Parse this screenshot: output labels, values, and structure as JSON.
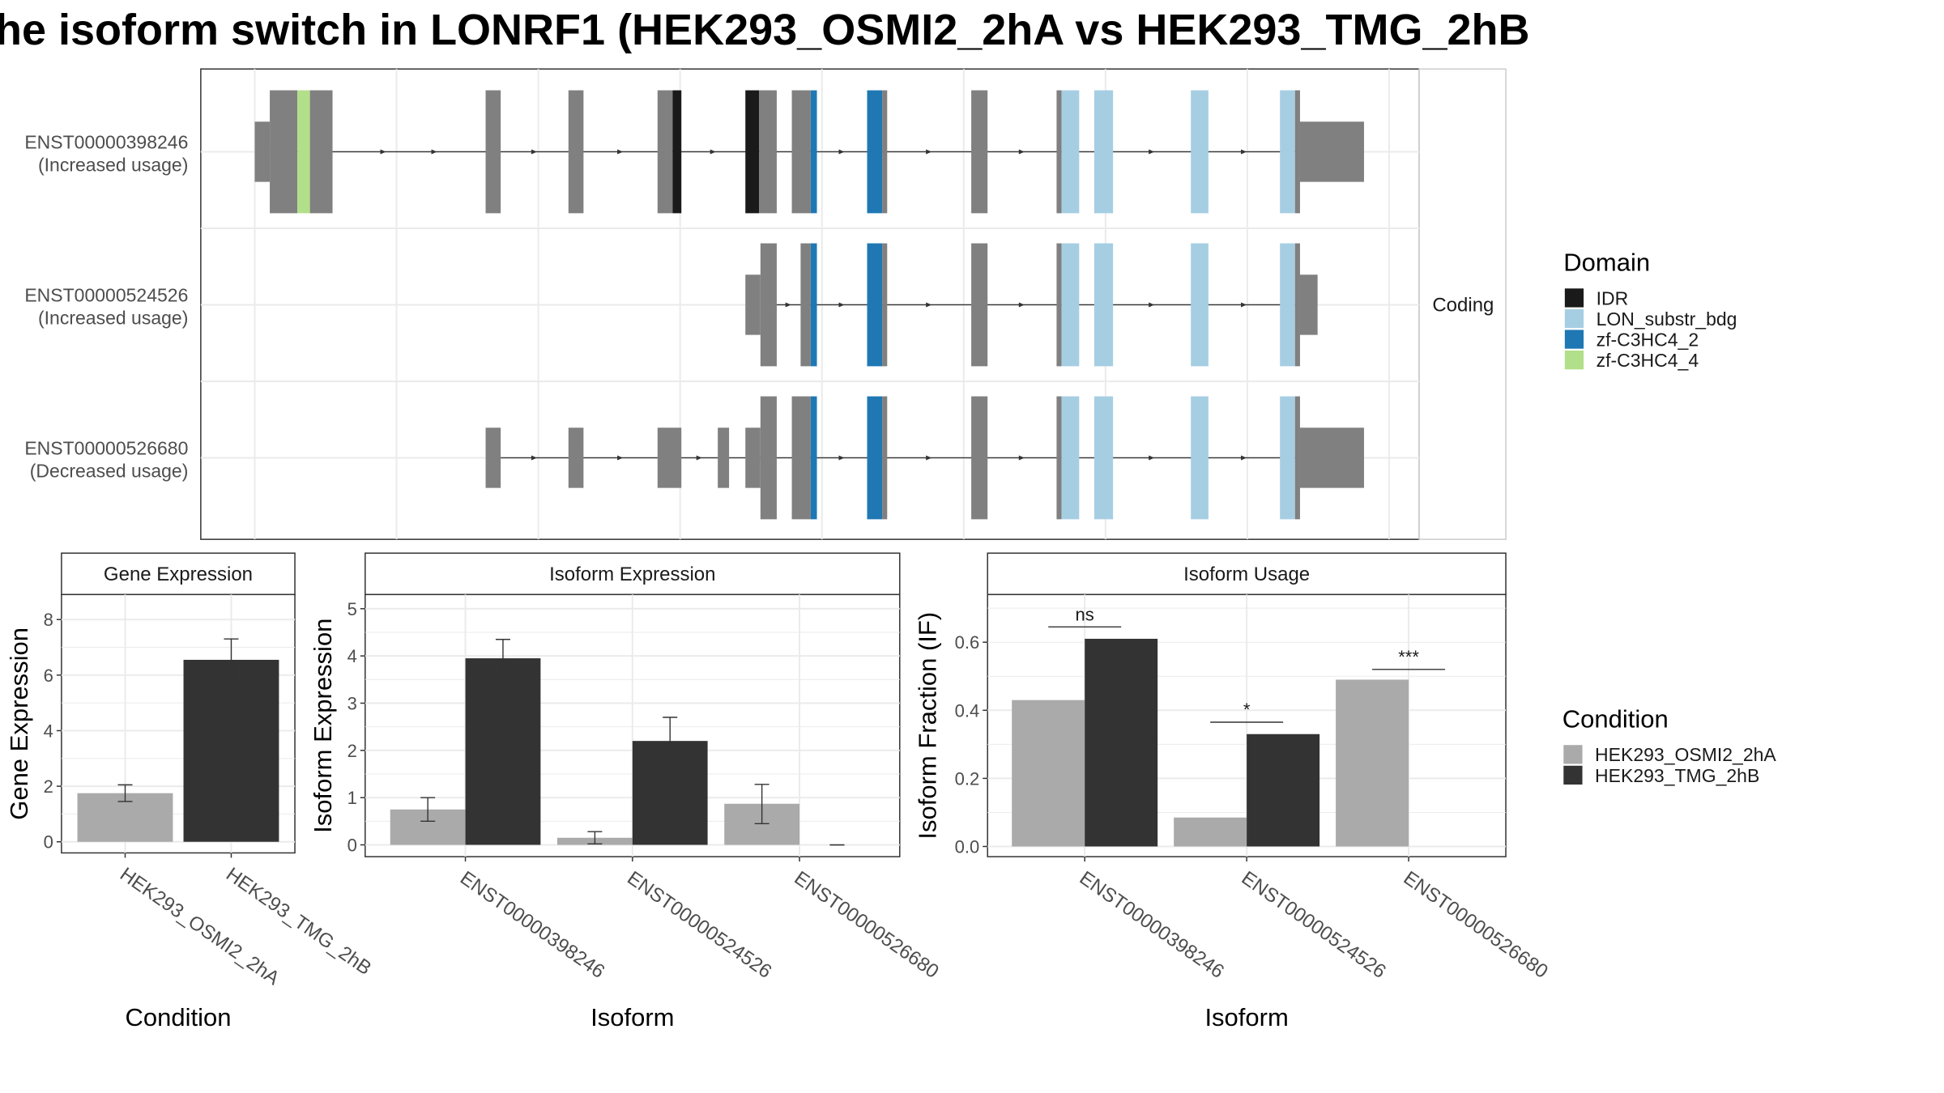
{
  "title": "he isoform switch in LONRF1 (HEK293_OSMI2_2hA vs HEK293_TMG_2hB",
  "colors": {
    "IDR": "#1a1a1a",
    "LON_substr_bdg": "#a6cee3",
    "zf-C3HC4_2": "#1f78b4",
    "zf-C3HC4_4": "#b2df8a",
    "exon": "#808080",
    "cond_A": "#aaaaaa",
    "cond_B": "#333333"
  },
  "chart_data": [
    {
      "type": "gene-structure",
      "panel_strip": "Coding",
      "legend_title": "Domain",
      "legend": [
        "IDR",
        "LON_substr_bdg",
        "zf-C3HC4_2",
        "zf-C3HC4_4"
      ],
      "transcripts": [
        {
          "id": "ENST00000398246",
          "label": "(Increased usage)",
          "intron": [
            215,
            1035
          ],
          "exons": [
            {
              "start": 203,
              "end": 265,
              "kind": "coding",
              "segments": [
                [
                  203,
                  215,
                  "utr"
                ],
                [
                  215,
                  237,
                  "exon"
                ],
                [
                  237,
                  247,
                  "zf-C3HC4_4"
                ],
                [
                  247,
                  265,
                  "exon"
                ]
              ]
            },
            {
              "start": 387,
              "end": 399,
              "segments": [
                [
                  387,
                  399,
                  "exon"
                ]
              ]
            },
            {
              "start": 453,
              "end": 465,
              "segments": [
                [
                  453,
                  465,
                  "exon"
                ]
              ]
            },
            {
              "start": 524,
              "end": 543,
              "segments": [
                [
                  524,
                  536,
                  "exon"
                ],
                [
                  536,
                  543,
                  "IDR"
                ]
              ]
            },
            {
              "start": 594,
              "end": 619,
              "segments": [
                [
                  594,
                  605,
                  "IDR"
                ],
                [
                  605,
                  619,
                  "exon"
                ]
              ]
            },
            {
              "start": 631,
              "end": 651,
              "segments": [
                [
                  631,
                  646,
                  "exon"
                ],
                [
                  646,
                  651,
                  "zf-C3HC4_2"
                ]
              ]
            },
            {
              "start": 691,
              "end": 707,
              "segments": [
                [
                  691,
                  703,
                  "zf-C3HC4_2"
                ],
                [
                  703,
                  707,
                  "exon"
                ]
              ]
            },
            {
              "start": 774,
              "end": 787,
              "segments": [
                [
                  774,
                  787,
                  "exon"
                ]
              ]
            },
            {
              "start": 842,
              "end": 860,
              "segments": [
                [
                  842,
                  846,
                  "exon"
                ],
                [
                  846,
                  860,
                  "LON_substr_bdg"
                ]
              ]
            },
            {
              "start": 872,
              "end": 887,
              "segments": [
                [
                  872,
                  887,
                  "LON_substr_bdg"
                ]
              ]
            },
            {
              "start": 949,
              "end": 963,
              "segments": [
                [
                  949,
                  963,
                  "LON_substr_bdg"
                ]
              ]
            },
            {
              "start": 1020,
              "end": 1087,
              "segments": [
                [
                  1020,
                  1032,
                  "LON_substr_bdg"
                ],
                [
                  1032,
                  1036,
                  "exon"
                ],
                [
                  1036,
                  1087,
                  "utr"
                ]
              ]
            }
          ]
        },
        {
          "id": "ENST00000524526",
          "label": "(Increased usage)",
          "intron": [
            619,
            1035
          ],
          "exons": [
            {
              "start": 594,
              "end": 619,
              "segments": [
                [
                  594,
                  606,
                  "utr"
                ],
                [
                  606,
                  619,
                  "exon"
                ]
              ]
            },
            {
              "start": 638,
              "end": 651,
              "segments": [
                [
                  638,
                  646,
                  "exon"
                ],
                [
                  646,
                  651,
                  "zf-C3HC4_2"
                ]
              ]
            },
            {
              "start": 691,
              "end": 707,
              "segments": [
                [
                  691,
                  703,
                  "zf-C3HC4_2"
                ],
                [
                  703,
                  707,
                  "exon"
                ]
              ]
            },
            {
              "start": 774,
              "end": 787,
              "segments": [
                [
                  774,
                  787,
                  "exon"
                ]
              ]
            },
            {
              "start": 842,
              "end": 860,
              "segments": [
                [
                  842,
                  846,
                  "exon"
                ],
                [
                  846,
                  860,
                  "LON_substr_bdg"
                ]
              ]
            },
            {
              "start": 872,
              "end": 887,
              "segments": [
                [
                  872,
                  887,
                  "LON_substr_bdg"
                ]
              ]
            },
            {
              "start": 949,
              "end": 963,
              "segments": [
                [
                  949,
                  963,
                  "LON_substr_bdg"
                ]
              ]
            },
            {
              "start": 1020,
              "end": 1050,
              "segments": [
                [
                  1020,
                  1032,
                  "LON_substr_bdg"
                ],
                [
                  1032,
                  1036,
                  "exon"
                ],
                [
                  1036,
                  1050,
                  "utr"
                ]
              ]
            }
          ]
        },
        {
          "id": "ENST00000526680",
          "label": "(Decreased usage)",
          "intron": [
            399,
            1035
          ],
          "exons": [
            {
              "start": 387,
              "end": 399,
              "segments": [
                [
                  387,
                  399,
                  "utr"
                ]
              ]
            },
            {
              "start": 453,
              "end": 465,
              "segments": [
                [
                  453,
                  465,
                  "utr"
                ]
              ]
            },
            {
              "start": 524,
              "end": 543,
              "segments": [
                [
                  524,
                  543,
                  "utr"
                ]
              ]
            },
            {
              "start": 572,
              "end": 581,
              "segments": [
                [
                  572,
                  581,
                  "utr"
                ]
              ]
            },
            {
              "start": 594,
              "end": 619,
              "segments": [
                [
                  594,
                  606,
                  "utr"
                ],
                [
                  606,
                  619,
                  "exon"
                ]
              ]
            },
            {
              "start": 631,
              "end": 651,
              "segments": [
                [
                  631,
                  646,
                  "exon"
                ],
                [
                  646,
                  651,
                  "zf-C3HC4_2"
                ]
              ]
            },
            {
              "start": 691,
              "end": 707,
              "segments": [
                [
                  691,
                  703,
                  "zf-C3HC4_2"
                ],
                [
                  703,
                  707,
                  "exon"
                ]
              ]
            },
            {
              "start": 774,
              "end": 787,
              "segments": [
                [
                  774,
                  787,
                  "exon"
                ]
              ]
            },
            {
              "start": 842,
              "end": 860,
              "segments": [
                [
                  842,
                  846,
                  "exon"
                ],
                [
                  846,
                  860,
                  "LON_substr_bdg"
                ]
              ]
            },
            {
              "start": 872,
              "end": 887,
              "segments": [
                [
                  872,
                  887,
                  "LON_substr_bdg"
                ]
              ]
            },
            {
              "start": 949,
              "end": 963,
              "segments": [
                [
                  949,
                  963,
                  "LON_substr_bdg"
                ]
              ]
            },
            {
              "start": 1020,
              "end": 1087,
              "segments": [
                [
                  1020,
                  1032,
                  "LON_substr_bdg"
                ],
                [
                  1032,
                  1036,
                  "exon"
                ],
                [
                  1036,
                  1087,
                  "utr"
                ]
              ]
            }
          ]
        }
      ]
    },
    {
      "type": "bar",
      "strip": "Gene Expression",
      "xlabel": "Condition",
      "ylabel": "Gene Expression",
      "categories": [
        "HEK293_OSMI2_2hA",
        "HEK293_TMG_2hB"
      ],
      "values": [
        1.75,
        6.55
      ],
      "errors": [
        [
          1.45,
          2.05
        ],
        [
          5.8,
          7.3
        ]
      ],
      "ylim": [
        -0.4,
        8.9
      ],
      "yticks": [
        0,
        2,
        4,
        6,
        8
      ]
    },
    {
      "type": "bar",
      "strip": "Isoform Expression",
      "xlabel": "Isoform",
      "ylabel": "Isoform Expression",
      "categories": [
        "ENST00000398246",
        "ENST00000524526",
        "ENST00000526680"
      ],
      "series": [
        {
          "name": "HEK293_OSMI2_2hA",
          "values": [
            0.75,
            0.15,
            0.87
          ],
          "errors": [
            [
              0.5,
              1.0
            ],
            [
              0.02,
              0.28
            ],
            [
              0.45,
              1.28
            ]
          ]
        },
        {
          "name": "HEK293_TMG_2hB",
          "values": [
            3.95,
            2.2,
            0.0
          ],
          "errors": [
            [
              3.55,
              4.35
            ],
            [
              1.7,
              2.7
            ],
            [
              0.0,
              0.0
            ]
          ]
        }
      ],
      "ylim": [
        -0.25,
        5.3
      ],
      "yticks": [
        0,
        1,
        2,
        3,
        4,
        5
      ]
    },
    {
      "type": "bar",
      "strip": "Isoform Usage",
      "xlabel": "Isoform",
      "ylabel": "Isoform Fraction (IF)",
      "categories": [
        "ENST00000398246",
        "ENST00000524526",
        "ENST00000526680"
      ],
      "series": [
        {
          "name": "HEK293_OSMI2_2hA",
          "values": [
            0.43,
            0.085,
            0.49
          ]
        },
        {
          "name": "HEK293_TMG_2hB",
          "values": [
            0.61,
            0.33,
            0.0
          ]
        }
      ],
      "significance": [
        {
          "label": "ns",
          "y": 0.645
        },
        {
          "label": "*",
          "y": 0.365
        },
        {
          "label": "***",
          "y": 0.52
        }
      ],
      "ylim": [
        -0.03,
        0.74
      ],
      "yticks": [
        "0.0",
        "0.2",
        "0.4",
        "0.6"
      ]
    }
  ],
  "condition_legend": {
    "title": "Condition",
    "items": [
      "HEK293_OSMI2_2hA",
      "HEK293_TMG_2hB"
    ]
  }
}
